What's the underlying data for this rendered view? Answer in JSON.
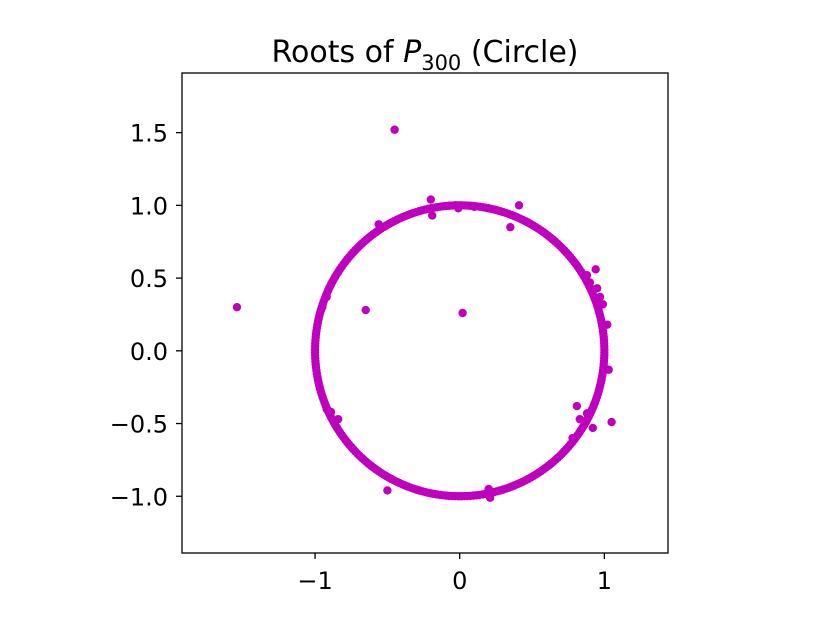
{
  "chart_data": {
    "type": "scatter",
    "title": {
      "prefix": "Roots of ",
      "var": "P",
      "subscript": "300",
      "suffix": " (Circle)"
    },
    "xlabel": "",
    "ylabel": "",
    "xlim": [
      -1.92,
      1.44
    ],
    "ylim": [
      -1.39,
      1.91
    ],
    "grid": false,
    "aspect": "equal",
    "marker_color": "#bf00bf",
    "xticks": [
      {
        "value": -1,
        "label": "−1"
      },
      {
        "value": 0,
        "label": "0"
      },
      {
        "value": 1,
        "label": "1"
      }
    ],
    "yticks": [
      {
        "value": 1.5,
        "label": "1.5"
      },
      {
        "value": 1.0,
        "label": "1.0"
      },
      {
        "value": 0.5,
        "label": "0.5"
      },
      {
        "value": 0.0,
        "label": "0.0"
      },
      {
        "value": -0.5,
        "label": "−0.5"
      },
      {
        "value": -1.0,
        "label": "−1.0"
      }
    ],
    "series": [
      {
        "circle_points": {
          "count": 300,
          "radius": 1.0,
          "center": [
            0,
            0
          ]
        },
        "points": [
          [
            -0.45,
            1.52
          ],
          [
            -1.54,
            0.3
          ],
          [
            -0.65,
            0.28
          ],
          [
            0.02,
            0.26
          ],
          [
            -0.2,
            1.04
          ],
          [
            -0.19,
            0.93
          ],
          [
            0.41,
            1.0
          ],
          [
            0.35,
            0.85
          ],
          [
            1.05,
            -0.49
          ],
          [
            0.92,
            -0.53
          ],
          [
            0.81,
            -0.38
          ],
          [
            0.83,
            -0.47
          ],
          [
            0.78,
            -0.6
          ],
          [
            0.88,
            -0.43
          ],
          [
            -0.89,
            -0.42
          ],
          [
            -0.92,
            -0.4
          ],
          [
            -0.84,
            -0.47
          ],
          [
            -0.92,
            0.37
          ],
          [
            -0.95,
            0.3
          ],
          [
            0.94,
            0.56
          ],
          [
            0.9,
            0.47
          ],
          [
            0.97,
            0.37
          ],
          [
            0.95,
            0.43
          ],
          [
            0.88,
            0.52
          ],
          [
            1.02,
            0.18
          ],
          [
            1.03,
            -0.13
          ],
          [
            0.99,
            0.32
          ],
          [
            0.21,
            -1.01
          ],
          [
            0.2,
            -0.95
          ],
          [
            -0.5,
            -0.96
          ],
          [
            -0.56,
            0.87
          ],
          [
            -0.55,
            0.85
          ],
          [
            -0.03,
            1.0
          ],
          [
            -0.01,
            0.98
          ],
          [
            0.1,
            0.99
          ]
        ]
      }
    ]
  }
}
